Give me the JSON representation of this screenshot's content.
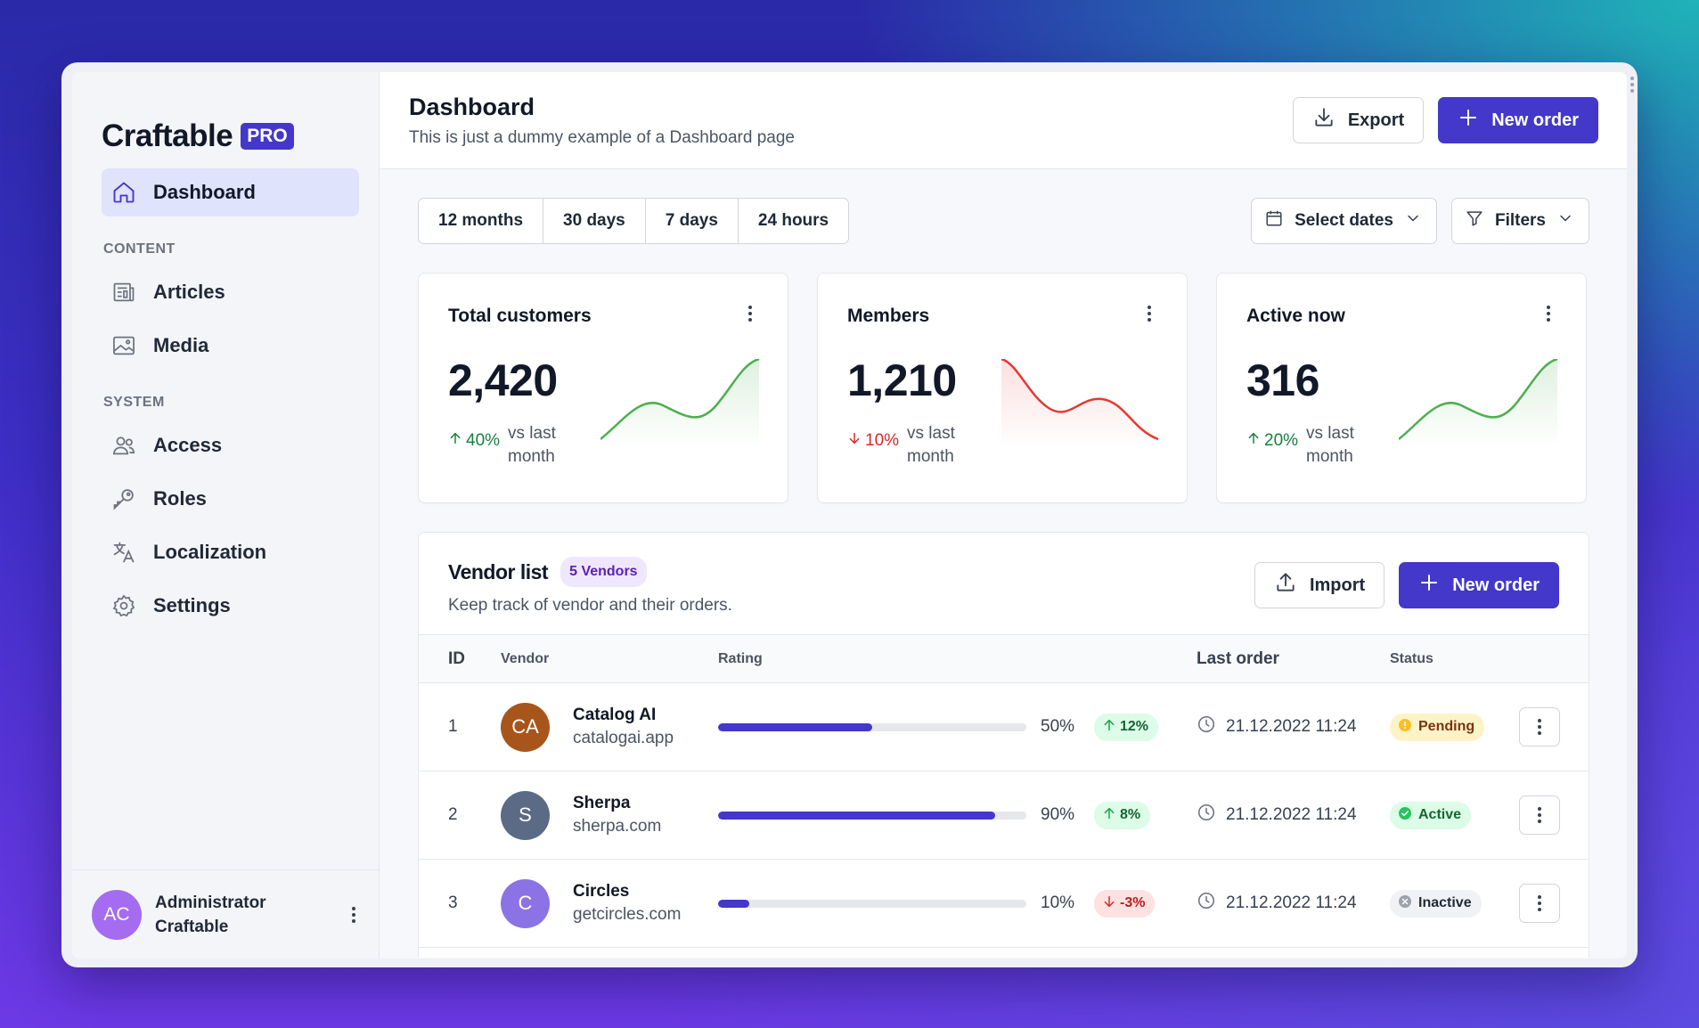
{
  "brand": {
    "name": "Craftable",
    "badge": "PRO"
  },
  "sidebar": {
    "items": [
      {
        "label": "Dashboard"
      },
      {
        "label": "Articles"
      },
      {
        "label": "Media"
      },
      {
        "label": "Access"
      },
      {
        "label": "Roles"
      },
      {
        "label": "Localization"
      },
      {
        "label": "Settings"
      }
    ],
    "sections": [
      "CONTENT",
      "SYSTEM"
    ],
    "user": {
      "initials": "AC",
      "name_line1": "Administrator",
      "name_line2": "Craftable"
    }
  },
  "header": {
    "title": "Dashboard",
    "subtitle": "This is just a dummy example of a Dashboard page",
    "export_label": "Export",
    "new_order_label": "New order"
  },
  "toolbar": {
    "ranges": [
      "12 months",
      "30 days",
      "7 days",
      "24 hours"
    ],
    "select_dates_label": "Select dates",
    "filters_label": "Filters"
  },
  "cards": [
    {
      "title": "Total customers",
      "value": "2,420",
      "change": "40%",
      "direction": "up",
      "compare": "vs last month",
      "color": "#4caf50"
    },
    {
      "title": "Members",
      "value": "1,210",
      "change": "10%",
      "direction": "down",
      "compare": "vs last month",
      "color": "#e53935"
    },
    {
      "title": "Active now",
      "value": "316",
      "change": "20%",
      "direction": "up",
      "compare": "vs last month",
      "color": "#4caf50"
    }
  ],
  "vendor": {
    "title": "Vendor list",
    "badge": "5 Vendors",
    "subtitle": "Keep track of vendor and their orders.",
    "import_label": "Import",
    "new_order_label": "New order",
    "columns": [
      "ID",
      "Vendor",
      "Rating",
      "Last order",
      "Status"
    ],
    "rows": [
      {
        "id": "1",
        "initials": "CA",
        "avatar_color": "#a8551c",
        "name": "Catalog AI",
        "domain": "catalogai.app",
        "rating": 0.5,
        "rating_label": "50%",
        "change": "12%",
        "direction": "up",
        "last_order": "21.12.2022 11:24",
        "status": "Pending"
      },
      {
        "id": "2",
        "initials": "S",
        "avatar_color": "#5b6b86",
        "name": "Sherpa",
        "domain": "sherpa.com",
        "rating": 0.9,
        "rating_label": "90%",
        "change": "8%",
        "direction": "up",
        "last_order": "21.12.2022 11:24",
        "status": "Active"
      },
      {
        "id": "3",
        "initials": "C",
        "avatar_color": "#8b73e6",
        "name": "Circles",
        "domain": "getcircles.com",
        "rating": 0.1,
        "rating_label": "10%",
        "change": "-3%",
        "direction": "down",
        "last_order": "21.12.2022 11:24",
        "status": "Inactive"
      }
    ]
  },
  "colors": {
    "accent": "#4338ca",
    "up": "#15803d",
    "down": "#dc2626"
  }
}
